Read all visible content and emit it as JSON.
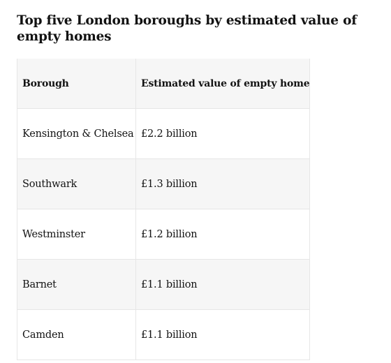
{
  "title": "Top five London boroughs by estimated value of empty homes",
  "table": {
    "headers": [
      "Borough",
      "Estimated value of empty homes"
    ],
    "rows": [
      [
        "Kensington & Chelsea",
        "£2.2 billion"
      ],
      [
        "Southwark",
        "£1.3 billion"
      ],
      [
        "Westminster",
        "£1.2 billion"
      ],
      [
        "Barnet",
        "£1.1 billion"
      ],
      [
        "Camden",
        "£1.1 billion"
      ]
    ]
  }
}
